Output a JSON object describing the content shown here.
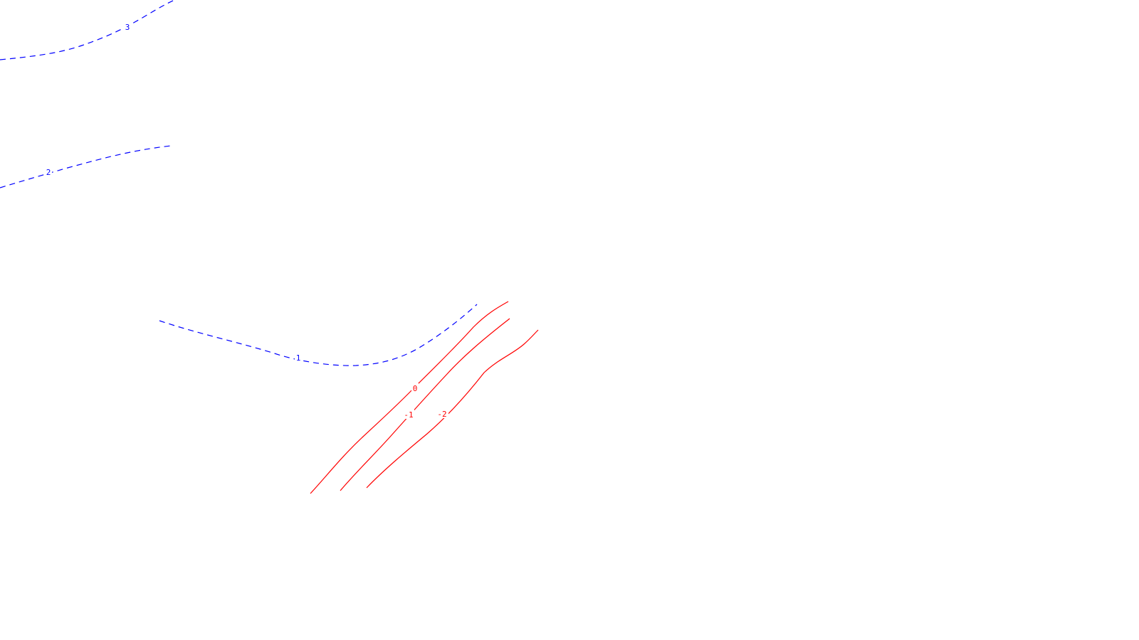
{
  "colors": {
    "background": "#ffffff",
    "positive": "#0000ff",
    "negative": "#ff0000"
  },
  "contours": [
    {
      "id": "contour-3",
      "label": "3",
      "sign": "positive",
      "style": "dashed"
    },
    {
      "id": "contour-2",
      "label": "2",
      "sign": "positive",
      "style": "dashed"
    },
    {
      "id": "contour-1",
      "label": "1",
      "sign": "positive",
      "style": "dashed"
    },
    {
      "id": "contour-0",
      "label": "0",
      "sign": "negative",
      "style": "solid"
    },
    {
      "id": "contour-neg-1",
      "label": "-1",
      "sign": "negative",
      "style": "solid"
    },
    {
      "id": "contour-neg-2",
      "label": "-2",
      "sign": "negative",
      "style": "solid"
    }
  ]
}
